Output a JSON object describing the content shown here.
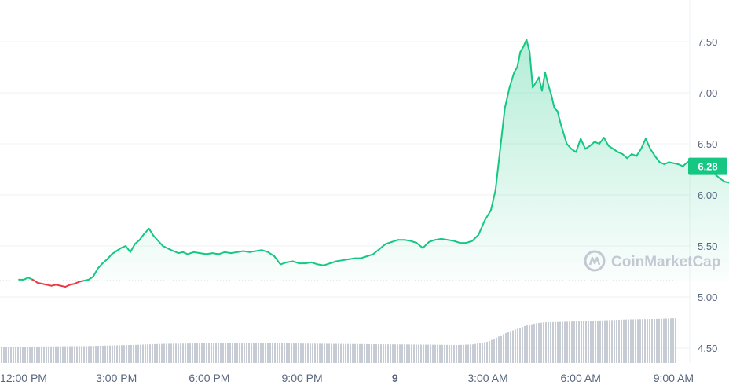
{
  "chart_data": {
    "type": "area",
    "y_ticks": [
      "7.50",
      "7.00",
      "6.50",
      "6.00",
      "5.50",
      "5.00",
      "4.50"
    ],
    "y_tick_values": [
      7.5,
      7.0,
      6.5,
      6.0,
      5.5,
      5.0,
      4.5
    ],
    "x_ticks": [
      {
        "label": "12:00 PM",
        "hour": 12,
        "bold": false
      },
      {
        "label": "3:00 PM",
        "hour": 15,
        "bold": false
      },
      {
        "label": "6:00 PM",
        "hour": 18,
        "bold": false
      },
      {
        "label": "9:00 PM",
        "hour": 21,
        "bold": false
      },
      {
        "label": "9",
        "hour": 24,
        "bold": true
      },
      {
        "label": "3:00 AM",
        "hour": 27,
        "bold": false
      },
      {
        "label": "6:00 AM",
        "hour": 30,
        "bold": false
      },
      {
        "label": "9:00 AM",
        "hour": 33,
        "bold": false
      }
    ],
    "baseline": 5.16,
    "current_price_label": "6.28",
    "current_price": 6.28,
    "ylim": [
      4.4,
      7.75
    ],
    "xlim_hours": [
      11.8,
      35.15
    ],
    "colors": {
      "up": "#16c784",
      "down": "#ea3943",
      "badge": "#16c784",
      "volume": "#c7cbd4",
      "grid": "#eff2f5"
    },
    "series": [
      {
        "x_hours": [
          11.85,
          12.0,
          12.15,
          12.3,
          12.45,
          12.6,
          12.75,
          12.9,
          13.05,
          13.2,
          13.35,
          13.5,
          13.65,
          13.8,
          13.95,
          14.1,
          14.25,
          14.4,
          14.55,
          14.7,
          14.85,
          15.0,
          15.15,
          15.3,
          15.45,
          15.6,
          15.75,
          15.9,
          16.05,
          16.2,
          16.35,
          16.5,
          16.7,
          16.85,
          17.0,
          17.15,
          17.3,
          17.5,
          17.7,
          17.9,
          18.1,
          18.3,
          18.5,
          18.7,
          18.9,
          19.1,
          19.3,
          19.5,
          19.7,
          19.9,
          20.1,
          20.3,
          20.5,
          20.7,
          20.9,
          21.1,
          21.3,
          21.5,
          21.7,
          21.9,
          22.1,
          22.3,
          22.5,
          22.7,
          22.9,
          23.1,
          23.3,
          23.5,
          23.7,
          23.9,
          24.1,
          24.3,
          24.5,
          24.7,
          24.9,
          25.1,
          25.3,
          25.5,
          25.7,
          25.9,
          26.1,
          26.3,
          26.5,
          26.7,
          26.9,
          27.1,
          27.25,
          27.4,
          27.55,
          27.7,
          27.85,
          27.95,
          28.05,
          28.15,
          28.25,
          28.35,
          28.45,
          28.55,
          28.65,
          28.75,
          28.85,
          28.95,
          29.05,
          29.15,
          29.25,
          29.35,
          29.45,
          29.55,
          29.7,
          29.85,
          30.0,
          30.15,
          30.3,
          30.45,
          30.6,
          30.75,
          30.9,
          31.05,
          31.2,
          31.35,
          31.5,
          31.65,
          31.8,
          31.95,
          32.1,
          32.25,
          32.4,
          32.55,
          32.7,
          32.85,
          33.0,
          33.15,
          33.3,
          33.45,
          33.6,
          33.75,
          33.9,
          34.05,
          34.2,
          34.35,
          34.5,
          34.65,
          34.8,
          34.9,
          35.0
        ],
        "y": [
          5.17,
          5.17,
          5.19,
          5.17,
          5.14,
          5.13,
          5.12,
          5.11,
          5.12,
          5.11,
          5.1,
          5.12,
          5.13,
          5.15,
          5.16,
          5.17,
          5.2,
          5.28,
          5.33,
          5.37,
          5.42,
          5.45,
          5.48,
          5.5,
          5.44,
          5.52,
          5.56,
          5.62,
          5.67,
          5.6,
          5.55,
          5.5,
          5.47,
          5.45,
          5.43,
          5.44,
          5.42,
          5.44,
          5.43,
          5.42,
          5.43,
          5.42,
          5.44,
          5.43,
          5.44,
          5.45,
          5.44,
          5.45,
          5.46,
          5.44,
          5.4,
          5.32,
          5.34,
          5.35,
          5.33,
          5.33,
          5.34,
          5.32,
          5.31,
          5.33,
          5.35,
          5.36,
          5.37,
          5.38,
          5.38,
          5.4,
          5.42,
          5.47,
          5.52,
          5.54,
          5.56,
          5.56,
          5.55,
          5.53,
          5.48,
          5.54,
          5.56,
          5.57,
          5.56,
          5.55,
          5.53,
          5.53,
          5.55,
          5.61,
          5.75,
          5.85,
          6.05,
          6.45,
          6.85,
          7.05,
          7.2,
          7.25,
          7.4,
          7.45,
          7.52,
          7.4,
          7.05,
          7.1,
          7.15,
          7.02,
          7.2,
          7.08,
          6.98,
          6.85,
          6.82,
          6.7,
          6.6,
          6.5,
          6.45,
          6.42,
          6.55,
          6.45,
          6.48,
          6.52,
          6.5,
          6.56,
          6.48,
          6.45,
          6.42,
          6.4,
          6.36,
          6.4,
          6.38,
          6.45,
          6.55,
          6.45,
          6.38,
          6.32,
          6.3,
          6.32,
          6.31,
          6.3,
          6.28,
          6.32,
          6.34,
          6.3,
          6.28,
          6.26,
          6.22,
          6.2,
          6.16,
          6.13,
          6.12,
          6.2,
          6.28
        ]
      }
    ],
    "volume": {
      "x_hours": [
        11.8,
        14.0,
        15.5,
        16.5,
        18.0,
        20.0,
        22.0,
        24.0,
        26.0,
        26.5,
        27.0,
        27.3,
        27.6,
        27.9,
        28.2,
        28.5,
        28.8,
        29.5,
        30.5,
        31.5,
        32.5,
        33.5,
        34.5,
        35.0
      ],
      "relative_height": [
        0.29,
        0.3,
        0.32,
        0.34,
        0.35,
        0.35,
        0.34,
        0.33,
        0.32,
        0.33,
        0.38,
        0.46,
        0.54,
        0.6,
        0.66,
        0.7,
        0.72,
        0.73,
        0.75,
        0.77,
        0.78,
        0.8,
        0.82,
        0.83
      ]
    }
  },
  "watermark": {
    "text": "CoinMarketCap"
  }
}
